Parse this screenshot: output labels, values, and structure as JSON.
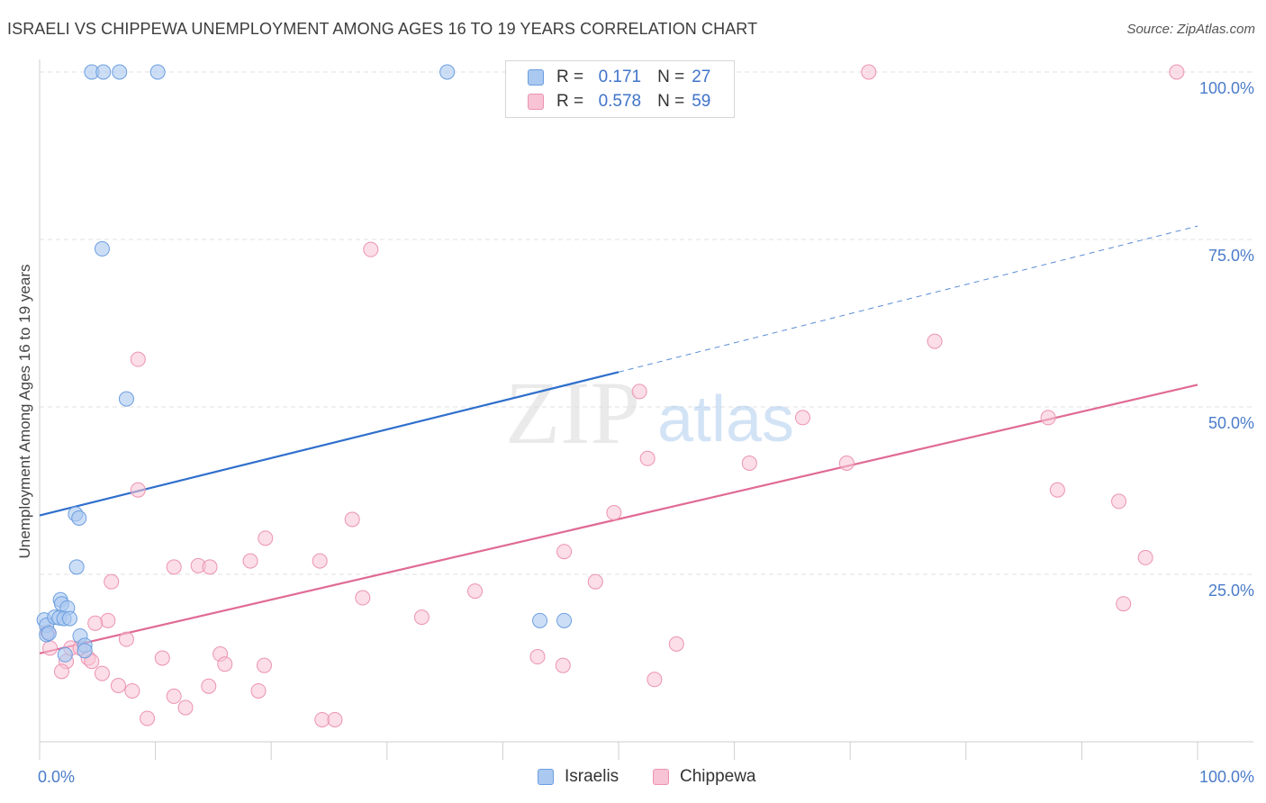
{
  "title": "ISRAELI VS CHIPPEWA UNEMPLOYMENT AMONG AGES 16 TO 19 YEARS CORRELATION CHART",
  "source": "Source: ZipAtlas.com",
  "watermark": {
    "zip": "ZIP",
    "atlas": "atlas"
  },
  "legend": {
    "israelis": {
      "r_label": "R =",
      "r_value": "0.171",
      "n_label": "N =",
      "n_value": "27"
    },
    "chippewa": {
      "r_label": "R =",
      "r_value": "0.578",
      "n_label": "N =",
      "n_value": "59"
    }
  },
  "colors": {
    "israelis_fill": "#aac8f0",
    "israelis_stroke": "#6b9ee0",
    "israelis_line": "#2f6fcc",
    "chippewa_fill": "#f8c3d4",
    "chippewa_stroke": "#ec93b1",
    "chippewa_line": "#e06a95",
    "tick_text": "#4a7cc9",
    "grid": "#e2e2e2"
  },
  "chart_data": {
    "type": "scatter",
    "title": "ISRAELI VS CHIPPEWA UNEMPLOYMENT AMONG AGES 16 TO 19 YEARS CORRELATION CHART",
    "xlabel": "",
    "ylabel": "Unemployment Among Ages 16 to 19 years",
    "xlim": [
      0,
      100
    ],
    "ylim": [
      0,
      100
    ],
    "x_tick_labels": [
      "0.0%",
      "100.0%"
    ],
    "y_ticks": [
      25,
      50,
      75,
      100
    ],
    "y_tick_labels": [
      "25.0%",
      "50.0%",
      "75.0%",
      "100.0%"
    ],
    "grid": true,
    "legend_position": "top-center",
    "series": [
      {
        "name": "Israelis",
        "points": [
          [
            4.5,
            100
          ],
          [
            5.5,
            100
          ],
          [
            6.9,
            100
          ],
          [
            10.2,
            100
          ],
          [
            35.2,
            100
          ],
          [
            5.4,
            73.6
          ],
          [
            7.5,
            51.2
          ],
          [
            3.1,
            34.0
          ],
          [
            3.4,
            33.4
          ],
          [
            3.2,
            26.1
          ],
          [
            1.8,
            21.2
          ],
          [
            1.9,
            20.6
          ],
          [
            2.4,
            20.0
          ],
          [
            0.4,
            18.2
          ],
          [
            0.6,
            17.4
          ],
          [
            1.3,
            18.6
          ],
          [
            1.7,
            18.5
          ],
          [
            2.1,
            18.4
          ],
          [
            2.6,
            18.4
          ],
          [
            0.6,
            16.0
          ],
          [
            0.8,
            16.2
          ],
          [
            3.5,
            15.8
          ],
          [
            3.9,
            14.4
          ],
          [
            2.2,
            13.0
          ],
          [
            3.9,
            13.6
          ],
          [
            43.2,
            18.1
          ],
          [
            45.3,
            18.1
          ]
        ],
        "trend": {
          "x": [
            0,
            50
          ],
          "y": [
            33.8,
            55.2
          ],
          "dashed_extension_to": [
            100,
            77.0
          ]
        }
      },
      {
        "name": "Chippewa",
        "points": [
          [
            71.6,
            100
          ],
          [
            98.2,
            100
          ],
          [
            28.6,
            73.5
          ],
          [
            77.3,
            59.8
          ],
          [
            8.5,
            57.1
          ],
          [
            51.8,
            52.3
          ],
          [
            65.9,
            48.4
          ],
          [
            87.1,
            48.4
          ],
          [
            52.5,
            42.3
          ],
          [
            61.3,
            41.6
          ],
          [
            69.7,
            41.6
          ],
          [
            8.5,
            37.6
          ],
          [
            87.9,
            37.6
          ],
          [
            93.2,
            35.9
          ],
          [
            49.6,
            34.2
          ],
          [
            27.0,
            33.2
          ],
          [
            19.5,
            30.4
          ],
          [
            45.3,
            28.4
          ],
          [
            95.5,
            27.5
          ],
          [
            18.2,
            27.0
          ],
          [
            24.2,
            27.0
          ],
          [
            13.7,
            26.3
          ],
          [
            11.6,
            26.1
          ],
          [
            14.7,
            26.1
          ],
          [
            6.2,
            23.9
          ],
          [
            48.0,
            23.9
          ],
          [
            37.6,
            22.5
          ],
          [
            27.9,
            21.5
          ],
          [
            93.6,
            20.6
          ],
          [
            33.0,
            18.6
          ],
          [
            5.9,
            18.1
          ],
          [
            4.8,
            17.7
          ],
          [
            0.7,
            16.4
          ],
          [
            7.5,
            15.3
          ],
          [
            55.0,
            14.6
          ],
          [
            0.9,
            14.0
          ],
          [
            2.7,
            14.0
          ],
          [
            3.5,
            14.0
          ],
          [
            15.6,
            13.1
          ],
          [
            4.2,
            12.5
          ],
          [
            10.6,
            12.5
          ],
          [
            2.3,
            12.0
          ],
          [
            4.5,
            12.0
          ],
          [
            16.0,
            11.6
          ],
          [
            19.4,
            11.4
          ],
          [
            43.0,
            12.7
          ],
          [
            45.2,
            11.4
          ],
          [
            1.9,
            10.5
          ],
          [
            5.4,
            10.2
          ],
          [
            53.1,
            9.3
          ],
          [
            6.8,
            8.4
          ],
          [
            8.0,
            7.6
          ],
          [
            14.6,
            8.3
          ],
          [
            18.9,
            7.6
          ],
          [
            11.6,
            6.8
          ],
          [
            12.6,
            5.1
          ],
          [
            24.4,
            3.3
          ],
          [
            25.5,
            3.3
          ],
          [
            9.3,
            3.5
          ]
        ],
        "trend": {
          "x": [
            0,
            100
          ],
          "y": [
            13.2,
            53.3
          ]
        }
      }
    ]
  },
  "bottom_legend": {
    "israelis_label": "Israelis",
    "chippewa_label": "Chippewa"
  }
}
